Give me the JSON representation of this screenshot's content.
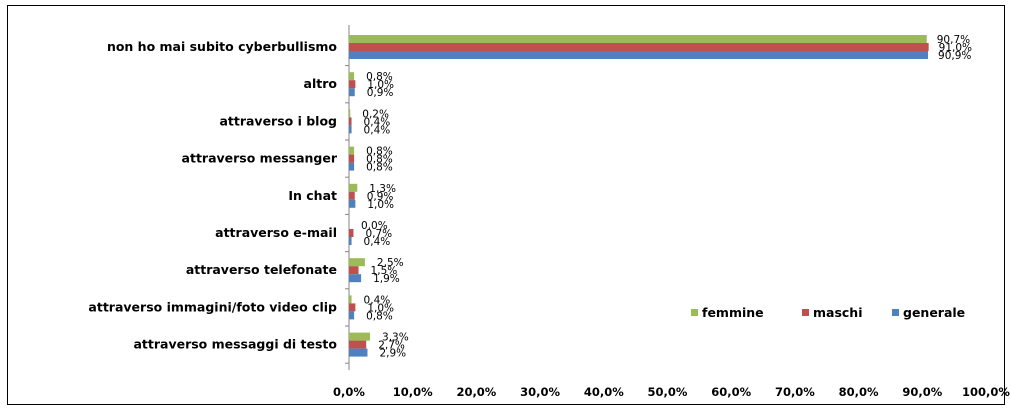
{
  "chart_data": {
    "type": "bar",
    "orientation": "horizontal",
    "categories": [
      "non ho mai subito cyberbullismo",
      "altro",
      "attraverso i blog",
      "attraverso messanger",
      "In chat",
      "attraverso e-mail",
      "attraverso telefonate",
      "attraverso immagini/foto video clip",
      "attraverso messaggi di testo"
    ],
    "series": [
      {
        "name": "femmine",
        "color": "#9bbb59",
        "values": [
          90.7,
          0.8,
          0.2,
          0.8,
          1.3,
          0.0,
          2.5,
          0.4,
          3.3
        ],
        "labels": [
          "90,7%",
          "0,8%",
          "0,2%",
          "0,8%",
          "1,3%",
          "0,0%",
          "2,5%",
          "0,4%",
          "3,3%"
        ]
      },
      {
        "name": "maschi",
        "color": "#c0504d",
        "values": [
          91.0,
          1.0,
          0.4,
          0.8,
          0.9,
          0.7,
          1.5,
          1.0,
          2.7
        ],
        "labels": [
          "91,0%",
          "1,0%",
          "0,4%",
          "0,8%",
          "0,9%",
          "0,7%",
          "1,5%",
          "1,0%",
          "2,7%"
        ]
      },
      {
        "name": "generale",
        "color": "#4f81bd",
        "values": [
          90.9,
          0.9,
          0.4,
          0.8,
          1.0,
          0.4,
          1.9,
          0.8,
          2.9
        ],
        "labels": [
          "90,9%",
          "0,9%",
          "0,4%",
          "0,8%",
          "1,0%",
          "0,4%",
          "1,9%",
          "0,8%",
          "2,9%"
        ]
      }
    ],
    "xlim": [
      0,
      100
    ],
    "xticks": [
      "0,0%",
      "10,0%",
      "20,0%",
      "30,0%",
      "40,0%",
      "50,0%",
      "60,0%",
      "70,0%",
      "80,0%",
      "90,0%",
      "100,0%"
    ],
    "grid": false,
    "legend_position": "right, inside plot, lower",
    "title": "",
    "xlabel": "",
    "ylabel": ""
  }
}
